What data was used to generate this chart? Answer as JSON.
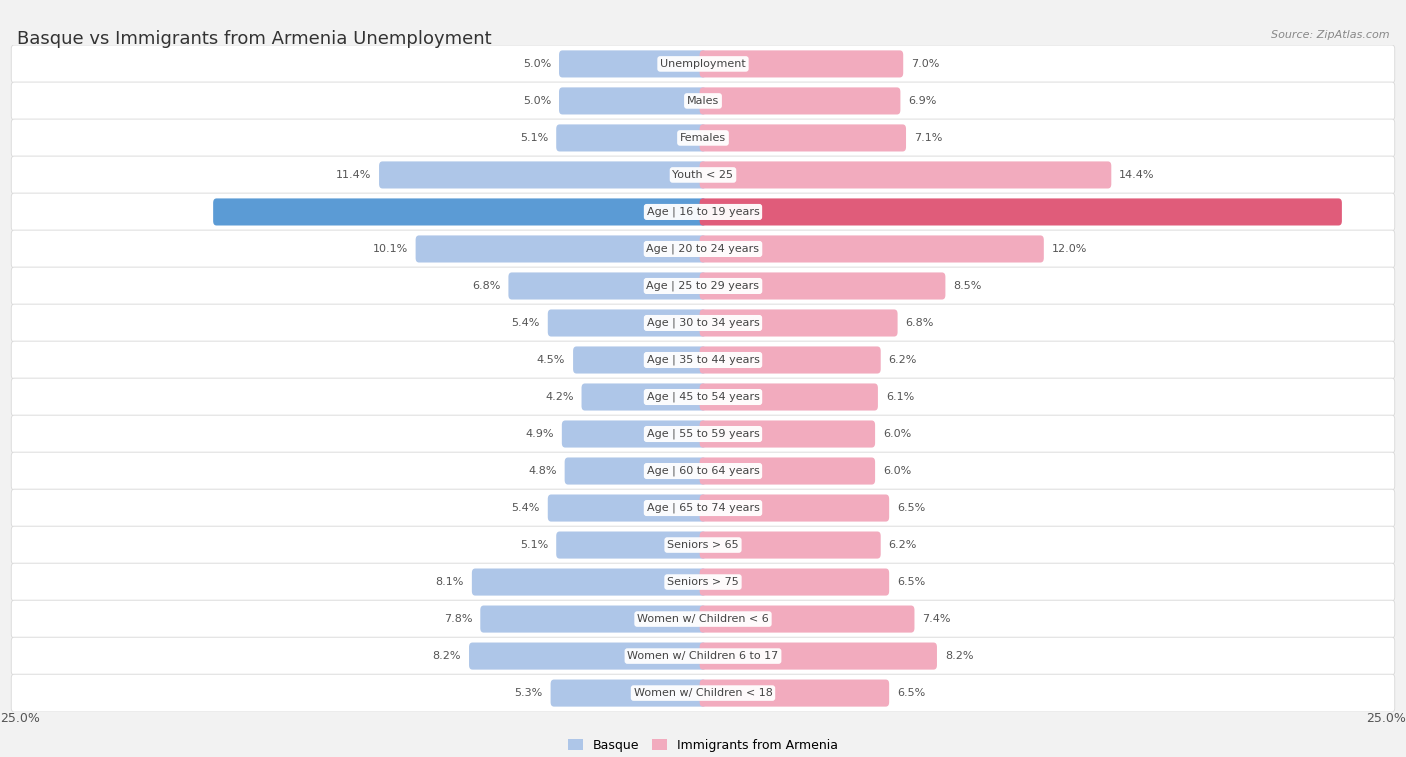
{
  "title": "Basque vs Immigrants from Armenia Unemployment",
  "source": "Source: ZipAtlas.com",
  "categories": [
    "Unemployment",
    "Males",
    "Females",
    "Youth < 25",
    "Age | 16 to 19 years",
    "Age | 20 to 24 years",
    "Age | 25 to 29 years",
    "Age | 30 to 34 years",
    "Age | 35 to 44 years",
    "Age | 45 to 54 years",
    "Age | 55 to 59 years",
    "Age | 60 to 64 years",
    "Age | 65 to 74 years",
    "Seniors > 65",
    "Seniors > 75",
    "Women w/ Children < 6",
    "Women w/ Children 6 to 17",
    "Women w/ Children < 18"
  ],
  "basque_values": [
    5.0,
    5.0,
    5.1,
    11.4,
    17.3,
    10.1,
    6.8,
    5.4,
    4.5,
    4.2,
    4.9,
    4.8,
    5.4,
    5.1,
    8.1,
    7.8,
    8.2,
    5.3
  ],
  "armenia_values": [
    7.0,
    6.9,
    7.1,
    14.4,
    22.6,
    12.0,
    8.5,
    6.8,
    6.2,
    6.1,
    6.0,
    6.0,
    6.5,
    6.2,
    6.5,
    7.4,
    8.2,
    6.5
  ],
  "basque_color": "#aec6e8",
  "armenia_color": "#f2abbe",
  "basque_highlight": "#5b9bd5",
  "armenia_highlight": "#e05c7a",
  "highlight_row": "Age | 16 to 19 years",
  "max_value": 25.0,
  "legend_basque": "Basque",
  "legend_armenia": "Immigrants from Armenia",
  "bg_color": "#f2f2f2",
  "row_bg_color": "#ffffff",
  "row_border_color": "#d8d8d8",
  "value_text_color": "#555555",
  "value_highlight_color": "#ffffff",
  "label_text_color": "#444444",
  "title_color": "#333333",
  "source_color": "#888888",
  "title_fontsize": 13,
  "source_fontsize": 8,
  "label_fontsize": 8,
  "value_fontsize": 8
}
